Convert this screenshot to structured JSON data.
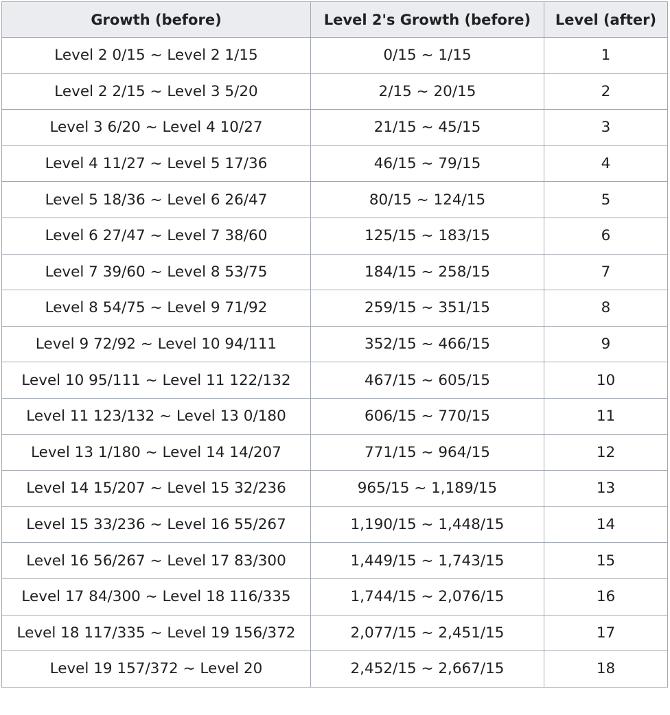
{
  "table": {
    "headers": [
      "Growth (before)",
      "Level 2's Growth (before)",
      "Level (after)"
    ],
    "rows": [
      [
        "Level 2 0/15 ~ Level 2 1/15",
        "0/15 ~ 1/15",
        "1"
      ],
      [
        "Level 2 2/15 ~ Level 3 5/20",
        "2/15 ~ 20/15",
        "2"
      ],
      [
        "Level 3 6/20 ~ Level 4 10/27",
        "21/15 ~ 45/15",
        "3"
      ],
      [
        "Level 4 11/27 ~ Level 5 17/36",
        "46/15 ~ 79/15",
        "4"
      ],
      [
        "Level 5 18/36 ~ Level 6 26/47",
        "80/15 ~ 124/15",
        "5"
      ],
      [
        "Level 6 27/47 ~ Level 7 38/60",
        "125/15 ~ 183/15",
        "6"
      ],
      [
        "Level 7 39/60 ~ Level 8 53/75",
        "184/15 ~ 258/15",
        "7"
      ],
      [
        "Level 8 54/75 ~ Level 9 71/92",
        "259/15 ~ 351/15",
        "8"
      ],
      [
        "Level 9 72/92 ~ Level 10 94/111",
        "352/15 ~ 466/15",
        "9"
      ],
      [
        "Level 10 95/111 ~ Level 11 122/132",
        "467/15 ~ 605/15",
        "10"
      ],
      [
        "Level 11 123/132 ~ Level 13 0/180",
        "606/15 ~ 770/15",
        "11"
      ],
      [
        "Level 13 1/180 ~ Level 14 14/207",
        "771/15 ~ 964/15",
        "12"
      ],
      [
        "Level 14 15/207 ~ Level 15 32/236",
        "965/15 ~ 1,189/15",
        "13"
      ],
      [
        "Level 15 33/236 ~ Level 16 55/267",
        "1,190/15 ~ 1,448/15",
        "14"
      ],
      [
        "Level 16 56/267 ~ Level 17 83/300",
        "1,449/15 ~ 1,743/15",
        "15"
      ],
      [
        "Level 17 84/300 ~ Level 18 116/335",
        "1,744/15 ~ 2,076/15",
        "16"
      ],
      [
        "Level 18 117/335 ~ Level 19 156/372",
        "2,077/15 ~ 2,451/15",
        "17"
      ],
      [
        "Level 19 157/372 ~ Level 20",
        "2,452/15 ~ 2,667/15",
        "18"
      ]
    ]
  },
  "colors": {
    "header_background": "#eaecf0",
    "border": "#a2a9b1",
    "text": "#202122"
  }
}
